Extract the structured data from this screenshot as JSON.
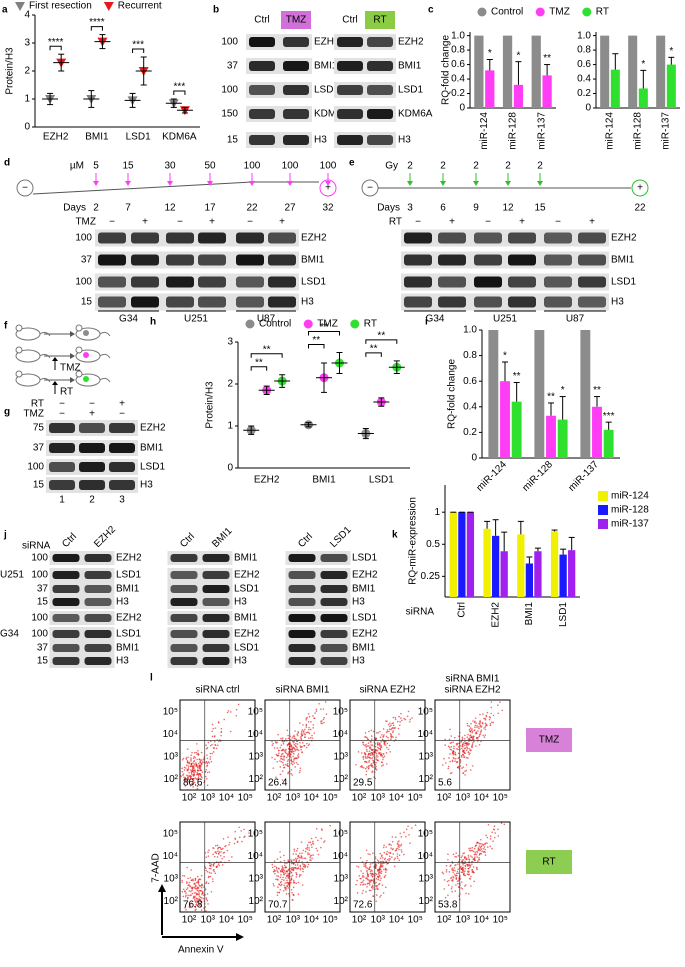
{
  "chart_data": [
    {
      "type": "dot",
      "panel": "a",
      "ylabel": "Protein/H3",
      "ylim": [
        0,
        4
      ],
      "yticks": [
        0,
        1,
        2,
        3,
        4
      ],
      "categories": [
        "EZH2",
        "BMI1",
        "LSD1",
        "KDM6A"
      ],
      "series": [
        {
          "name": "First resection",
          "color": "#808080",
          "marker": "triangle-down",
          "values": [
            1.0,
            1.0,
            0.95,
            0.85
          ],
          "errors": [
            0.2,
            0.3,
            0.25,
            0.15
          ]
        },
        {
          "name": "Recurrent",
          "color": "#e41a1c",
          "marker": "triangle-down",
          "values": [
            2.3,
            3.05,
            2.0,
            0.6
          ],
          "errors": [
            0.3,
            0.25,
            0.5,
            0.1
          ],
          "annotations": [
            "****",
            "****",
            "***",
            "***"
          ]
        }
      ]
    },
    {
      "type": "bar",
      "panel": "c",
      "ylabel": "RQ-fold change",
      "ylim": [
        0,
        1.05
      ],
      "yticks": [
        0,
        0.2,
        0.4,
        0.6,
        0.8,
        {
          "value": 1,
          "label": "1.0"
        }
      ],
      "categories": [
        "miR-124",
        "miR-128",
        "miR-137"
      ],
      "series": [
        {
          "name": "Control",
          "color": "#8c8c8c",
          "values": [
            1,
            1,
            1
          ]
        },
        {
          "name": "TMZ",
          "color": "#ff3df5",
          "values": [
            0.52,
            0.32,
            0.45
          ],
          "errors": [
            0.15,
            0.32,
            0.15
          ],
          "annotations": [
            "*",
            "*",
            "**"
          ]
        }
      ]
    },
    {
      "type": "bar",
      "ylim": [
        0,
        1.05
      ],
      "yticks": [
        0,
        0.2,
        0.4,
        0.6,
        0.8,
        {
          "value": 1,
          "label": "1.0"
        }
      ],
      "categories": [
        "miR-124",
        "miR-128",
        "miR-137"
      ],
      "series": [
        {
          "name": "Control",
          "color": "#8c8c8c",
          "values": [
            1,
            1,
            1
          ]
        },
        {
          "name": "RT",
          "color": "#2fe02f",
          "values": [
            0.53,
            0.27,
            0.6
          ],
          "errors": [
            0.22,
            0.25,
            0.1
          ],
          "annotations": [
            null,
            "*",
            "*"
          ]
        }
      ]
    },
    {
      "type": "dot",
      "panel": "h",
      "ylabel": "Protein/H3",
      "ylim": [
        0,
        3
      ],
      "yticks": [
        0,
        1,
        2,
        3
      ],
      "categories": [
        "EZH2",
        "BMI1",
        "LSD1"
      ],
      "series": [
        {
          "name": "Control",
          "color": "#8c8c8c",
          "marker": "circle",
          "values": [
            0.9,
            1.03,
            0.82
          ],
          "errors": [
            0.1,
            0.05,
            0.12
          ]
        },
        {
          "name": "TMZ",
          "color": "#ff3df5",
          "marker": "circle",
          "values": [
            1.85,
            2.15,
            1.57
          ],
          "errors": [
            0.1,
            0.35,
            0.1
          ],
          "annotations": [
            "**",
            "**",
            "**"
          ]
        },
        {
          "name": "RT",
          "color": "#2fe02f",
          "marker": "circle",
          "values": [
            2.07,
            2.5,
            2.4
          ],
          "errors": [
            0.15,
            0.25,
            0.15
          ],
          "annotations": [
            "**",
            "**",
            "**"
          ]
        }
      ]
    },
    {
      "type": "bar",
      "panel": "i",
      "ylabel": "RQ-fold change",
      "ylim": [
        0,
        1
      ],
      "yticks": [
        0,
        0.2,
        0.4,
        0.6,
        0.8,
        {
          "value": 1,
          "label": "1.0"
        }
      ],
      "categories": [
        "miR-124",
        "miR-128",
        "miR-137"
      ],
      "series": [
        {
          "name": "Control",
          "color": "#8c8c8c",
          "values": [
            1,
            1,
            1
          ]
        },
        {
          "name": "TMZ",
          "color": "#ff3df5",
          "values": [
            0.6,
            0.33,
            0.4
          ],
          "errors": [
            0.15,
            0.1,
            0.08
          ],
          "annotations": [
            "*",
            "**",
            "**"
          ]
        },
        {
          "name": "RT",
          "color": "#2fe02f",
          "values": [
            0.44,
            0.3,
            0.22
          ],
          "errors": [
            0.15,
            0.18,
            0.06
          ],
          "annotations": [
            "**",
            "*",
            "***"
          ]
        }
      ]
    },
    {
      "type": "bar",
      "panel": "k",
      "ylabel": "RQ-miR-expression",
      "xlabel": "siRNA",
      "log_scale": true,
      "ylim": [
        0.16,
        1.8
      ],
      "yticks": [
        0.25,
        0.5,
        1
      ],
      "categories": [
        "Ctrl",
        "EZH2",
        "BMI1",
        "LSD1"
      ],
      "series": [
        {
          "name": "miR-124",
          "color": "#f0f000",
          "values": [
            1,
            0.7,
            0.62,
            0.66
          ],
          "errors": [
            0,
            0.12,
            0.2,
            0.02
          ]
        },
        {
          "name": "miR-128",
          "color": "#1a1aff",
          "values": [
            1,
            0.6,
            0.33,
            0.4
          ],
          "errors": [
            0,
            0.25,
            0.05,
            0.05
          ]
        },
        {
          "name": "miR-137",
          "color": "#a020f0",
          "values": [
            1,
            0.43,
            0.43,
            0.44
          ],
          "errors": [
            0,
            0.22,
            0.03,
            0.14
          ]
        }
      ]
    }
  ],
  "b": {
    "letter": "b",
    "markers": [
      "100",
      "37",
      "100",
      "150",
      "15"
    ],
    "groups": [
      {
        "lanes": [
          "Ctrl",
          "TMZ"
        ],
        "color": "#d070d8",
        "labels": [
          "EZH2",
          "BMI1",
          "LSD1",
          "KDM6A",
          "H3"
        ]
      },
      {
        "lanes": [
          "Ctrl",
          "RT"
        ],
        "color": "#8ccc44",
        "labels": [
          "EZH2",
          "BMI1",
          "LSD1",
          "KDM6A",
          "H3"
        ]
      }
    ]
  },
  "d": {
    "letter": "d",
    "color": "#ff3df5",
    "start": "−",
    "end": "+",
    "dose_unit": "µM",
    "doses": [
      "5",
      "15",
      "30",
      "50",
      "100",
      "100",
      "100"
    ],
    "days_label": "Days",
    "days": [
      "2",
      "7",
      "12",
      "17",
      "22",
      "27",
      "32"
    ],
    "treatment": "TMZ",
    "lane_signs": [
      "−",
      "+",
      "−",
      "+",
      "−",
      "+"
    ],
    "markers": [
      "100",
      "37",
      "100",
      "15"
    ],
    "labels": [
      "EZH2",
      "BMI1",
      "LSD1",
      "H3"
    ],
    "cell_lines": [
      "G34",
      "U251",
      "U87"
    ]
  },
  "e": {
    "letter": "e",
    "color": "#2fc02f",
    "start": "−",
    "end": "+",
    "dose_unit": "Gy",
    "doses": [
      "2",
      "2",
      "2",
      "2",
      "2"
    ],
    "days_label": "Days",
    "days": [
      "3",
      "6",
      "9",
      "12",
      "15",
      "22"
    ],
    "treatment": "RT",
    "lane_signs": [
      "−",
      "+",
      "−",
      "+",
      "−",
      "+"
    ],
    "labels": [
      "EZH2",
      "BMI1",
      "LSD1",
      "H3"
    ],
    "cell_lines": [
      "G34",
      "U251",
      "U87"
    ]
  },
  "f": {
    "letter": "f",
    "treatments": [
      "TMZ",
      "RT"
    ]
  },
  "g": {
    "letter": "g",
    "rows": [
      {
        "label": "RT",
        "signs": [
          "−",
          "−",
          "+"
        ]
      },
      {
        "label": "TMZ",
        "signs": [
          "−",
          "+",
          "−"
        ]
      }
    ],
    "markers": [
      "75",
      "37",
      "100",
      "15"
    ],
    "labels": [
      "EZH2",
      "BMI1",
      "LSD1",
      "H3"
    ],
    "lanes": [
      "1",
      "2",
      "3"
    ]
  },
  "j": {
    "letter": "j",
    "lane_title": "siRNA",
    "lanes": [
      [
        "Ctrl",
        "EZH2"
      ],
      [
        "Ctrl",
        "BMI1"
      ],
      [
        "Ctrl",
        "LSD1"
      ]
    ],
    "blocks": [
      {
        "cell_line": "U251",
        "markers": [
          "100",
          "100",
          "37",
          "15"
        ],
        "labels": [
          [
            "EZH2",
            "LSD1",
            "BMI1",
            "H3"
          ],
          [
            "BMI1",
            "EZH2",
            "LSD1",
            "H3"
          ],
          [
            "LSD1",
            "EZH2",
            "BMI1",
            "H3"
          ]
        ]
      },
      {
        "cell_line": "G34",
        "markers": [
          "100",
          "100",
          "37",
          "15"
        ],
        "labels": [
          [
            "EZH2",
            "LSD1",
            "BMI1",
            "H3"
          ],
          [
            "BMI1",
            "EZH2",
            "LSD1",
            "H3"
          ],
          [
            "LSD1",
            "EZH2",
            "BMI1",
            "H3"
          ]
        ]
      }
    ]
  },
  "l": {
    "letter": "l",
    "columns": [
      [
        "siRNA ctrl"
      ],
      [
        "siRNA BMI1"
      ],
      [
        "siRNA EZH2"
      ],
      [
        "siRNA BMI1",
        "siRNA EZH2"
      ]
    ],
    "rows": [
      {
        "treatment": "TMZ",
        "color": "#d782d8",
        "percent": [
          "86.6",
          "26.4",
          "29.5",
          "5.6"
        ]
      },
      {
        "treatment": "RT",
        "color": "#8ccd52",
        "percent": [
          "76.8",
          "70.7",
          "72.6",
          "53.8"
        ]
      }
    ],
    "ticks": [
      "10²",
      "10³",
      "10⁴",
      "10⁵"
    ],
    "y_label": "7-AAD",
    "x_label": "Annexin V"
  }
}
